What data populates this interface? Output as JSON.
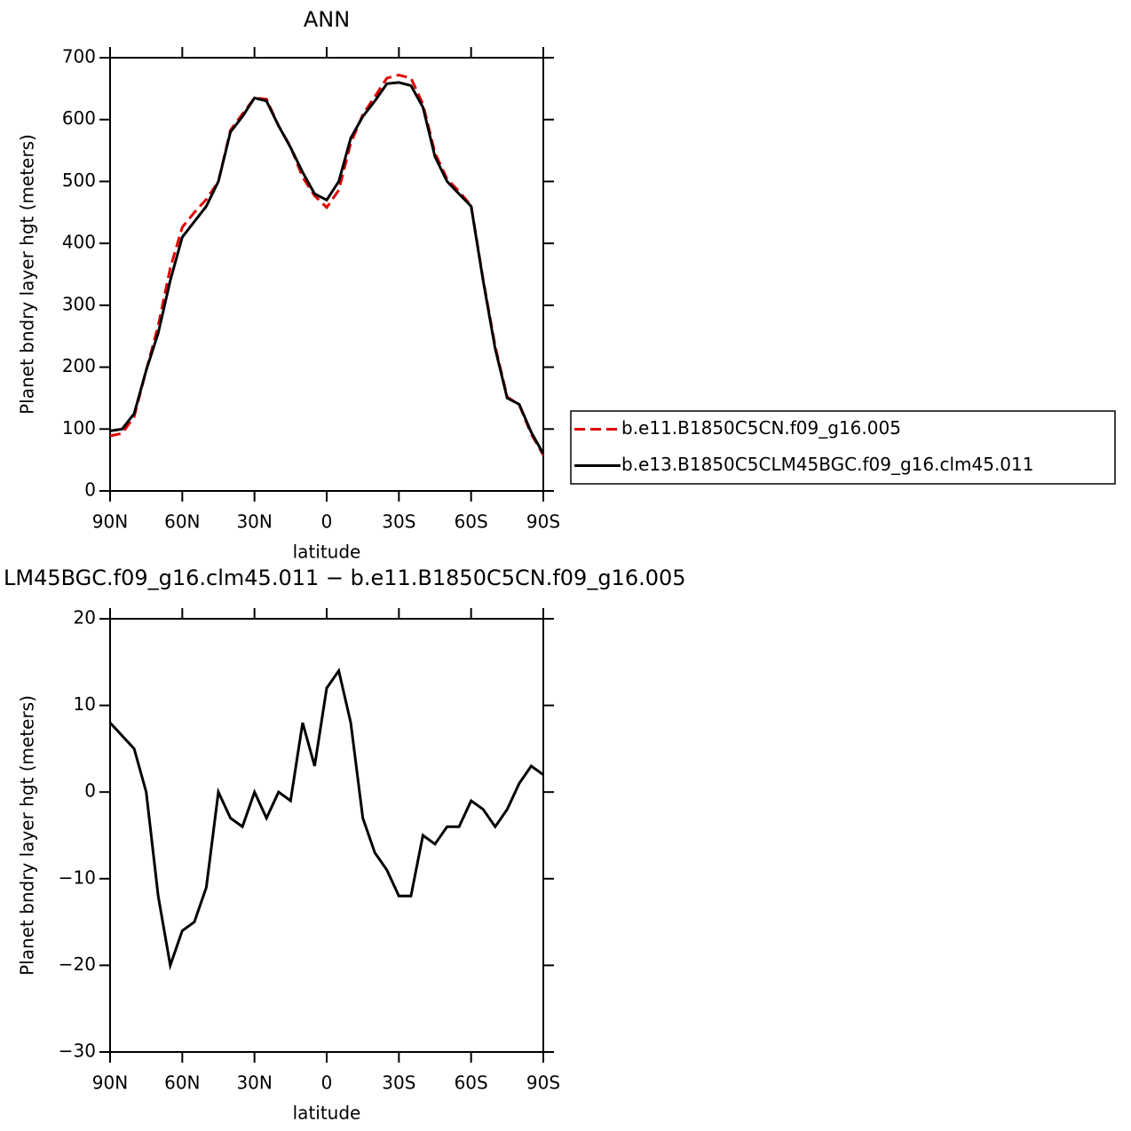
{
  "chart_data": [
    {
      "type": "line",
      "title": "ANN",
      "xlabel": "latitude",
      "ylabel": "Planet bndry layer hgt (meters)",
      "x": [
        90,
        85,
        80,
        75,
        70,
        65,
        60,
        55,
        50,
        45,
        40,
        35,
        30,
        25,
        20,
        15,
        10,
        5,
        0,
        -5,
        -10,
        -15,
        -20,
        -25,
        -30,
        -35,
        -40,
        -45,
        -50,
        -55,
        -60,
        -65,
        -70,
        -75,
        -80,
        -85,
        -90
      ],
      "series": [
        {
          "name": "b.e11.B1850C5CN.f09_g16.005",
          "color": "#e00000",
          "dash": true,
          "values": [
            89,
            93,
            120,
            195,
            267,
            360,
            426,
            450,
            471,
            500,
            583,
            609,
            635,
            633,
            590,
            556,
            507,
            477,
            458,
            486,
            562,
            608,
            637,
            667,
            672,
            667,
            625,
            546,
            504,
            484,
            461,
            342,
            234,
            152,
            139,
            92,
            58
          ]
        },
        {
          "name": "b.e13.B1850C5CLM45BGC.f09_g16.clm45.011",
          "color": "#000000",
          "dash": false,
          "values": [
            97,
            100,
            125,
            195,
            255,
            340,
            410,
            435,
            460,
            500,
            580,
            605,
            635,
            630,
            590,
            555,
            515,
            480,
            470,
            500,
            570,
            605,
            630,
            658,
            660,
            655,
            620,
            540,
            500,
            480,
            460,
            340,
            230,
            150,
            140,
            95,
            60
          ]
        }
      ],
      "xlim": [
        90,
        -90
      ],
      "xticks": [
        {
          "value": 90,
          "label": "90N"
        },
        {
          "value": 60,
          "label": "60N"
        },
        {
          "value": 30,
          "label": "30N"
        },
        0,
        {
          "value": -30,
          "label": "30S"
        },
        {
          "value": -60,
          "label": "60S"
        },
        {
          "value": -90,
          "label": "90S"
        }
      ],
      "ylim": [
        0,
        700
      ],
      "yticks": [
        0,
        100,
        200,
        300,
        400,
        500,
        600,
        700
      ],
      "legend": "right"
    },
    {
      "type": "line",
      "title": "LM45BGC.f09_g16.clm45.011 − b.e11.B1850C5CN.f09_g16.005",
      "xlabel": "latitude",
      "ylabel": "Planet bndry layer hgt (meters)",
      "x": [
        90,
        85,
        80,
        75,
        70,
        65,
        60,
        55,
        50,
        45,
        40,
        35,
        30,
        25,
        20,
        15,
        10,
        5,
        0,
        -5,
        -10,
        -15,
        -20,
        -25,
        -30,
        -35,
        -40,
        -45,
        -50,
        -55,
        -60,
        -65,
        -70,
        -75,
        -80,
        -85,
        -90
      ],
      "series": [
        {
          "color": "#000000",
          "dash": false,
          "values": [
            8,
            6.5,
            5,
            0,
            -12,
            -20,
            -16,
            -15,
            -11,
            0,
            -3,
            -4,
            0,
            -3,
            0,
            -1,
            8,
            3,
            12,
            14,
            8,
            -3,
            -7,
            -9,
            -12,
            -12,
            -5,
            -6,
            -4,
            -4,
            -1,
            -2,
            -4,
            -2,
            1,
            3,
            2
          ]
        }
      ],
      "xlim": [
        90,
        -90
      ],
      "xticks": [
        {
          "value": 90,
          "label": "90N"
        },
        {
          "value": 60,
          "label": "60N"
        },
        {
          "value": 30,
          "label": "30N"
        },
        0,
        {
          "value": -30,
          "label": "30S"
        },
        {
          "value": -60,
          "label": "60S"
        },
        {
          "value": -90,
          "label": "90S"
        }
      ],
      "ylim": [
        -30,
        20
      ],
      "yticks": [
        {
          "value": -30,
          "label": "−30"
        },
        {
          "value": -20,
          "label": "−20"
        },
        {
          "value": -10,
          "label": "−10"
        },
        0,
        10,
        20
      ]
    }
  ]
}
